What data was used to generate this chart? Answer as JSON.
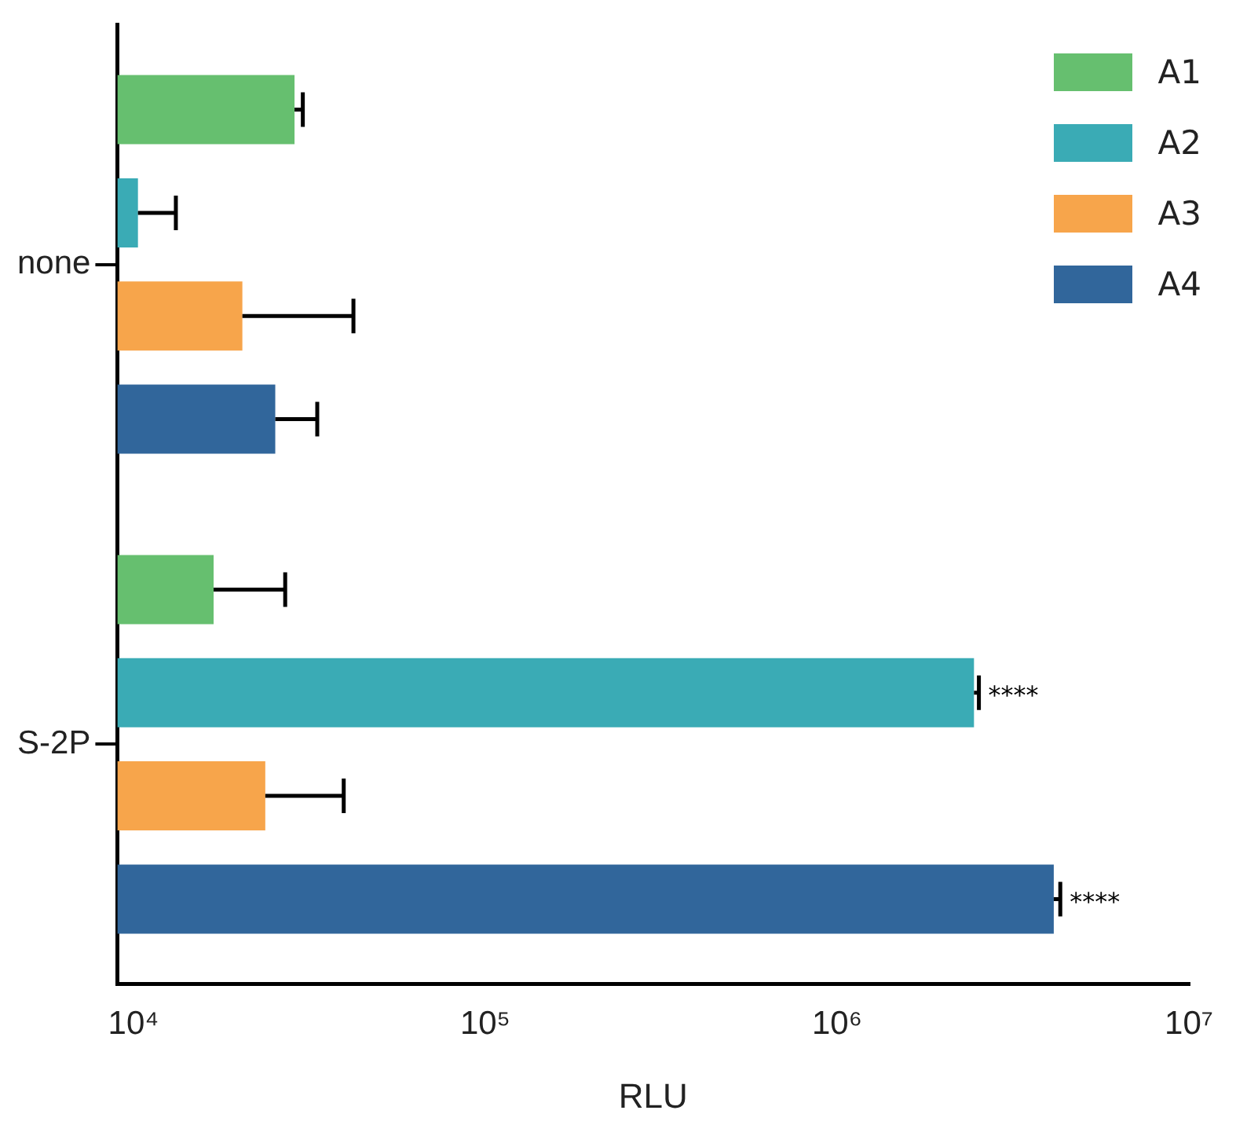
{
  "chart_data": {
    "type": "bar",
    "orientation": "horizontal",
    "log": "x",
    "xlabel": "RLU",
    "categories": [
      "none",
      "S-2P"
    ],
    "series": [
      {
        "name": "A1",
        "color": "#66bf6f",
        "values": [
          28700,
          16900
        ],
        "errors": [
          1600,
          10100
        ]
      },
      {
        "name": "A2",
        "color": "#3aabb5",
        "values": [
          10300,
          2450000
        ],
        "errors": [
          2900,
          80000
        ],
        "value_labels": [
          null,
          "****"
        ]
      },
      {
        "name": "A3",
        "color": "#f7a54b",
        "values": [
          20400,
          23700
        ],
        "errors": [
          21800,
          15900
        ]
      },
      {
        "name": "A4",
        "color": "#31669b",
        "values": [
          25300,
          4130000
        ],
        "errors": [
          8000,
          180000
        ],
        "value_labels": [
          null,
          "****"
        ]
      }
    ],
    "xlim": [
      9000,
      10000000
    ],
    "xticks": [
      {
        "value": 10000,
        "label": "10⁴"
      },
      {
        "value": 100000,
        "label": "10⁵"
      },
      {
        "value": 1000000,
        "label": "10⁶"
      },
      {
        "value": 10000000,
        "label": "10⁷"
      }
    ],
    "grid": false,
    "legend": "top right"
  }
}
